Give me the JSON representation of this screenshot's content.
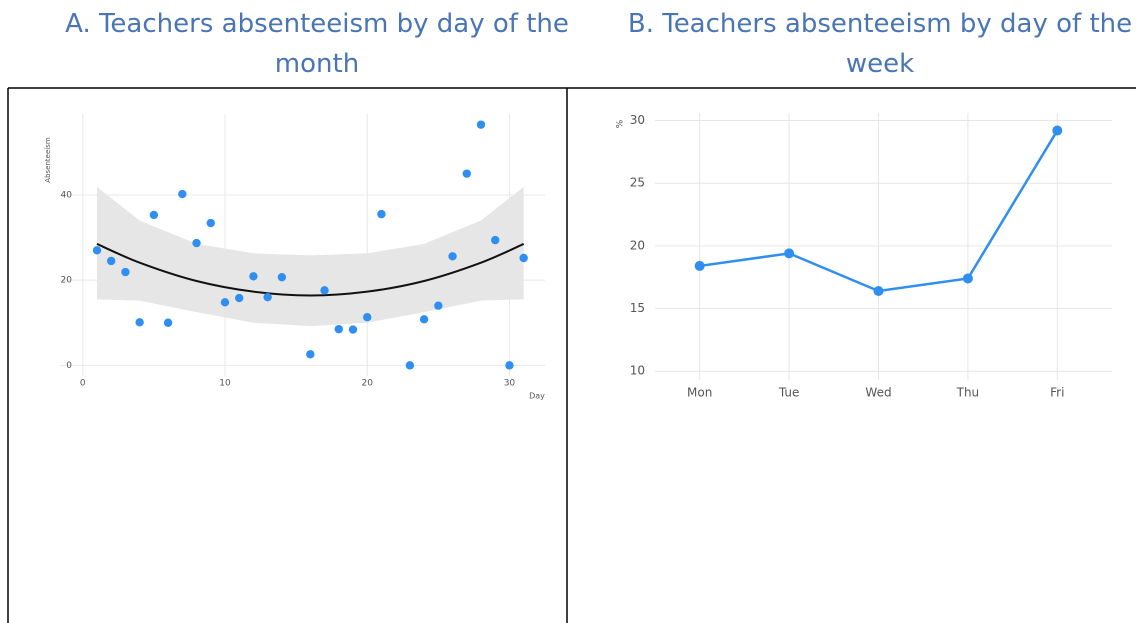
{
  "chart_data": [
    {
      "type": "scatter",
      "title": "A.  Teachers absenteeism by day of the month",
      "xlabel": "Day",
      "ylabel": "Absenteeism",
      "x": [
        1,
        2,
        3,
        4,
        5,
        6,
        7,
        8,
        9,
        10,
        11,
        12,
        13,
        14,
        16,
        17,
        18,
        19,
        20,
        21,
        23,
        24,
        25,
        26,
        27,
        28,
        29,
        30,
        31
      ],
      "values": [
        27,
        24.5,
        21.9,
        10.1,
        35.3,
        10,
        40.2,
        28.7,
        33.4,
        14.8,
        15.8,
        20.9,
        16,
        20.7,
        2.6,
        17.6,
        8.5,
        8.4,
        11.3,
        35.5,
        0,
        10.8,
        14,
        25.6,
        45,
        56.5,
        29.4,
        0,
        25.2
      ],
      "color": "#2f8ff0",
      "smooth": {
        "x": [
          1,
          4,
          8,
          12,
          16,
          20,
          24,
          28,
          31
        ],
        "values": [
          28.5,
          24.1,
          19.8,
          17.3,
          16.4,
          17.3,
          19.8,
          24.1,
          28.5
        ],
        "upper": [
          41.9,
          34,
          28.5,
          26.3,
          25.8,
          26.3,
          28.5,
          34,
          41.9
        ],
        "lower": [
          15.5,
          15.2,
          12.5,
          10,
          9.2,
          10,
          12.5,
          15.2,
          15.5
        ],
        "color": "#111111",
        "band_color": "#e6e6e6"
      },
      "xlim": [
        -1.6,
        32.5
      ],
      "ylim": [
        -2.5,
        59
      ],
      "xticks": [
        0,
        10,
        20,
        30
      ],
      "yticks": [
        0,
        20,
        40
      ],
      "grid": true
    },
    {
      "type": "line",
      "title": "B.  Teachers absenteeism by day of the week",
      "ylabel": "%",
      "categories": [
        "Mon",
        "Tue",
        "Wed",
        "Thu",
        "Fri"
      ],
      "values": [
        18.4,
        19.4,
        16.4,
        17.4,
        29.2
      ],
      "color": "#2f8ff0",
      "ylim": [
        9.3,
        30.6
      ],
      "yticks": [
        10,
        15,
        20,
        25,
        30
      ],
      "grid": true
    }
  ]
}
